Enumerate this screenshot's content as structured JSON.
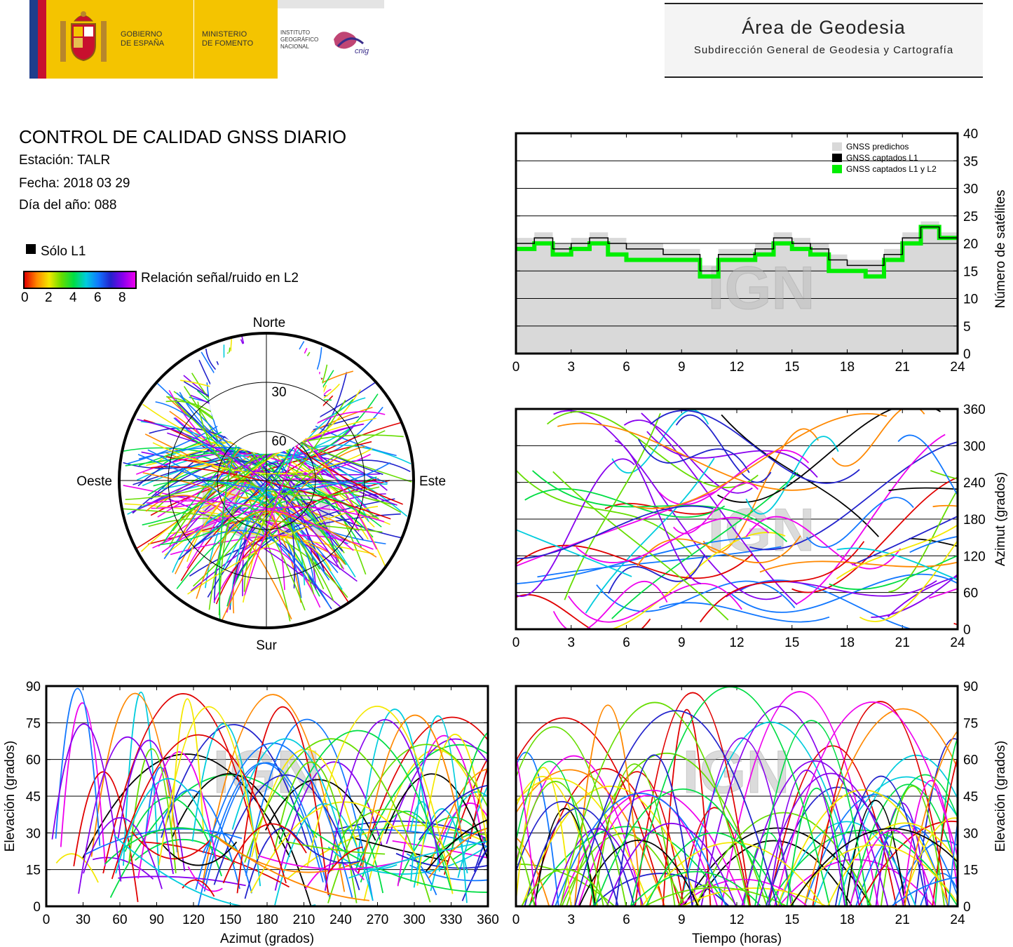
{
  "header": {
    "gobierno": "GOBIERNO\nDE ESPAÑA",
    "ministerio": "MINISTERIO\nDE FOMENTO",
    "instituto": "INSTITUTO\nGEOGRÁFICO\nNACIONAL",
    "cnig_logo": "cnig",
    "area": "Área de Geodesia",
    "subdireccion": "Subdirección General de Geodesia y Cartografía"
  },
  "report": {
    "title": "CONTROL DE CALIDAD GNSS DIARIO",
    "station": "Estación: TALR",
    "date": "Fecha: 2018 03 29",
    "doy": "Día del año: 088",
    "solo_l1": "Sólo L1",
    "colorbar_label": "Relación señal/ruido en L2",
    "colorbar_ticks": [
      "0",
      "2",
      "4",
      "6",
      "8"
    ]
  },
  "watermark": "IGN",
  "colors": {
    "predicted": "#d9d9d9",
    "l1": "#000000",
    "l1l2": "#00ee00",
    "snr_scale": [
      "#e00000",
      "#ff8800",
      "#f4e800",
      "#66dd00",
      "#00dd44",
      "#00ccdd",
      "#1177ff",
      "#2222cc",
      "#8800ee",
      "#ee00ee"
    ]
  },
  "chart_data": [
    {
      "type": "area",
      "id": "satellites",
      "ylabel": "Número de satélites",
      "xlim": [
        0,
        24
      ],
      "ylim": [
        0,
        40
      ],
      "xticks": [
        "0",
        "3",
        "6",
        "9",
        "12",
        "15",
        "18",
        "21",
        "24"
      ],
      "yticks": [
        "0",
        "5",
        "10",
        "15",
        "20",
        "25",
        "30",
        "35",
        "40"
      ],
      "legend": [
        "GNSS predichos",
        "GNSS captados L1",
        "GNSS captados L1 y L2"
      ],
      "legend_position": "top-right",
      "x": [
        0,
        1,
        2,
        3,
        4,
        5,
        6,
        7,
        8,
        9,
        10,
        11,
        12,
        13,
        14,
        15,
        16,
        17,
        18,
        19,
        20,
        21,
        22,
        23,
        24
      ],
      "series": [
        {
          "name": "GNSS predichos",
          "values": [
            21,
            22,
            20,
            21,
            22,
            21,
            20,
            20,
            19,
            19,
            16,
            19,
            19,
            20,
            22,
            21,
            20,
            18,
            17,
            17,
            19,
            22,
            24,
            22,
            20
          ]
        },
        {
          "name": "GNSS captados L1",
          "values": [
            20,
            21,
            19,
            20,
            21,
            20,
            19,
            19,
            18,
            18,
            15,
            18,
            18,
            19,
            21,
            20,
            19,
            17,
            16,
            16,
            18,
            21,
            23,
            21,
            19
          ]
        },
        {
          "name": "GNSS captados L1 y L2",
          "values": [
            19,
            20,
            18,
            19,
            20,
            18,
            17,
            17,
            17,
            17,
            14,
            17,
            17,
            18,
            20,
            19,
            18,
            15,
            15,
            14,
            17,
            20,
            23,
            21,
            19
          ]
        }
      ]
    },
    {
      "type": "scatter",
      "id": "skyplot",
      "labels": {
        "north": "Norte",
        "south": "Sur",
        "east": "Este",
        "west": "Oeste"
      },
      "rings": [
        "30",
        "60"
      ]
    },
    {
      "type": "scatter",
      "id": "azimuth_time",
      "ylabel": "Azimut (grados)",
      "xlim": [
        0,
        24
      ],
      "ylim": [
        0,
        360
      ],
      "xticks": [
        "0",
        "3",
        "6",
        "9",
        "12",
        "15",
        "18",
        "21",
        "24"
      ],
      "yticks": [
        "0",
        "60",
        "120",
        "180",
        "240",
        "300",
        "360"
      ]
    },
    {
      "type": "scatter",
      "id": "elev_azimuth",
      "xlabel": "Azimut (grados)",
      "ylabel": "Elevación (grados)",
      "xlim": [
        0,
        360
      ],
      "ylim": [
        0,
        90
      ],
      "xticks": [
        "0",
        "30",
        "60",
        "90",
        "120",
        "150",
        "180",
        "210",
        "240",
        "270",
        "300",
        "330",
        "360"
      ],
      "yticks": [
        "0",
        "15",
        "30",
        "45",
        "60",
        "75",
        "90"
      ]
    },
    {
      "type": "scatter",
      "id": "elev_time",
      "xlabel": "Tiempo (horas)",
      "ylabel": "Elevación (grados)",
      "xlim": [
        0,
        24
      ],
      "ylim": [
        0,
        90
      ],
      "xticks": [
        "0",
        "3",
        "6",
        "9",
        "12",
        "15",
        "18",
        "21",
        "24"
      ],
      "yticks": [
        "0",
        "15",
        "30",
        "45",
        "60",
        "75",
        "90"
      ]
    }
  ]
}
